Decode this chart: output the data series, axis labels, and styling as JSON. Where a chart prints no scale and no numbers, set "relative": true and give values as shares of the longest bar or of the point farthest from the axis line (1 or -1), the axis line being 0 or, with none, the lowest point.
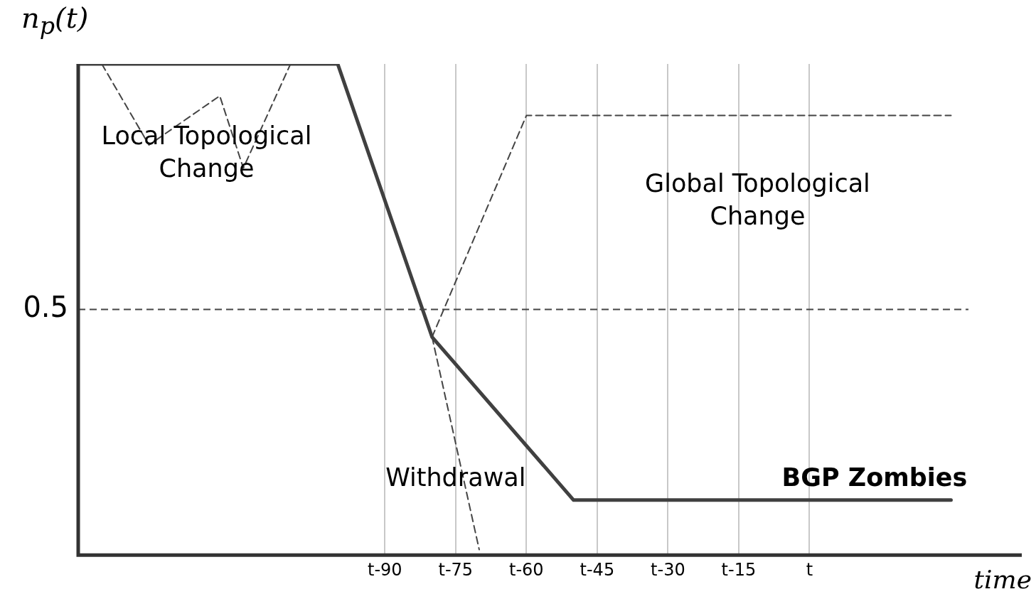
{
  "chart_data": {
    "type": "line",
    "relative": true,
    "xlabel": "time",
    "ylabel": "n$_{p}$(t)",
    "categories": [
      null,
      null,
      null,
      null,
      null,
      null,
      null,
      null,
      null,
      null,
      null,
      null,
      null,
      "t-90",
      null,
      null,
      "t-75",
      null,
      null,
      "t-60",
      null,
      null,
      "t-45",
      null,
      null,
      "t-30",
      null,
      null,
      "t-15",
      null,
      null,
      "t",
      null,
      null,
      null,
      null,
      null,
      null,
      null,
      null,
      null
    ],
    "grid": "x",
    "marker": "none",
    "series": [
      {
        "color": "#404040",
        "line_style": "solid",
        "values": [
          1,
          null,
          null,
          null,
          null,
          null,
          null,
          null,
          null,
          null,
          null,
          1,
          null,
          null,
          null,
          0.444,
          null,
          null,
          null,
          null,
          null,
          0.112,
          null,
          null,
          null,
          null,
          null,
          null,
          null,
          null,
          null,
          null,
          null,
          null,
          null,
          null,
          null,
          0.112,
          null,
          null,
          null
        ]
      },
      {
        "color": "#444444",
        "line_style": "dashed",
        "values": [
          null,
          1,
          null,
          0.835,
          null,
          null,
          0.935,
          0.788,
          null,
          1,
          null,
          null,
          null,
          null,
          null,
          null,
          null,
          null,
          null,
          null,
          null,
          null,
          null,
          null,
          null,
          null,
          null,
          null,
          null,
          null,
          null,
          null,
          null,
          null,
          null,
          null,
          null,
          null,
          null,
          null,
          null
        ]
      },
      {
        "color": "#444444",
        "line_style": "dashed",
        "values": [
          null,
          null,
          null,
          null,
          null,
          null,
          null,
          null,
          null,
          null,
          null,
          null,
          null,
          null,
          null,
          0.444,
          null,
          null,
          null,
          0.895,
          null,
          null,
          null,
          null,
          null,
          null,
          null,
          null,
          null,
          null,
          null,
          null,
          null,
          null,
          null,
          null,
          null,
          0.895,
          null,
          null,
          null
        ]
      },
      {
        "color": "#444444",
        "line_style": "dashed",
        "values": [
          null,
          null,
          null,
          null,
          null,
          null,
          null,
          null,
          null,
          null,
          null,
          null,
          null,
          null,
          null,
          0.444,
          null,
          0.011,
          null,
          null,
          null,
          null,
          null,
          null,
          null,
          null,
          null,
          null,
          null,
          null,
          null,
          null,
          null,
          null,
          null,
          null,
          null,
          null,
          null,
          null,
          null
        ]
      }
    ],
    "ref_lines": [
      {
        "axis": "y",
        "value": 0.5,
        "label": "0.5",
        "line_style": "dashed",
        "color": "#444444"
      }
    ],
    "annotations": [
      "Local Topological Change",
      "Global Topological Change",
      "Withdrawal",
      "BGP Zombies"
    ]
  }
}
